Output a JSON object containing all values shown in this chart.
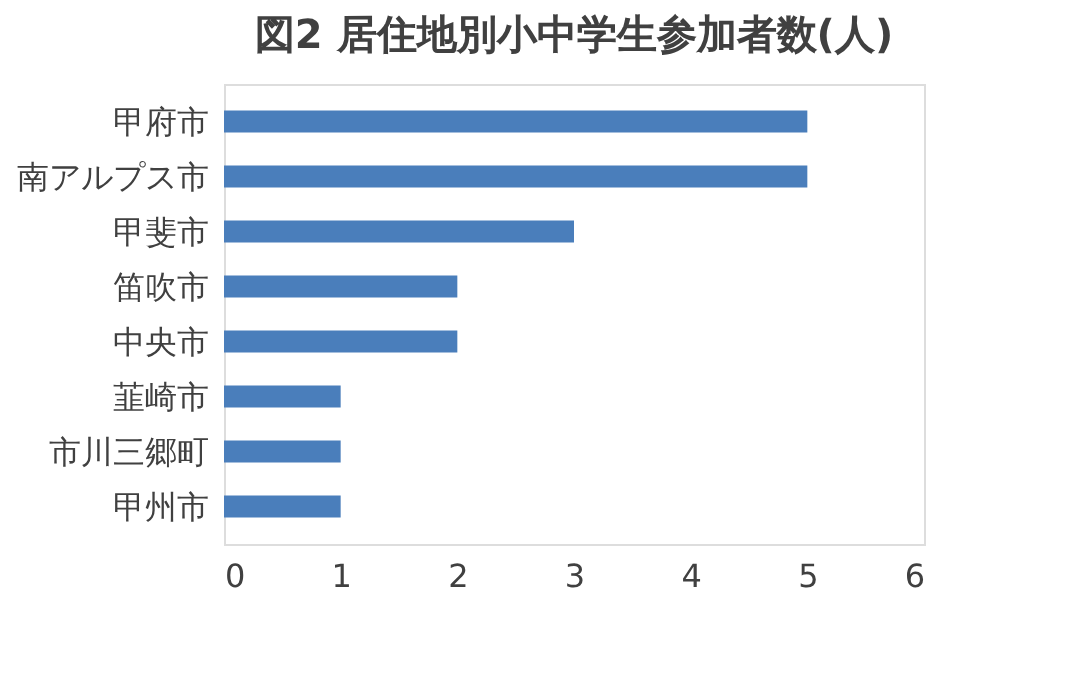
{
  "chart_data": {
    "type": "bar",
    "orientation": "horizontal",
    "title": "図2 居住地別小中学生参加者数(人)",
    "categories": [
      "甲府市",
      "南アルプス市",
      "甲斐市",
      "笛吹市",
      "中央市",
      "韮崎市",
      "市川三郷町",
      "甲州市"
    ],
    "values": [
      5,
      5,
      3,
      2,
      2,
      1,
      1,
      1
    ],
    "color": "#4a7ebb",
    "xlim": [
      0,
      6
    ],
    "xticks": [
      0,
      1,
      2,
      3,
      4,
      5,
      6
    ],
    "grid": false
  }
}
